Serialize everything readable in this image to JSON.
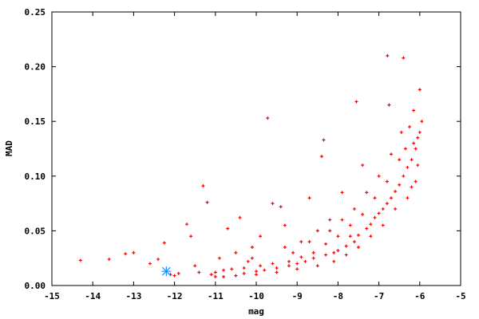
{
  "chart_data": {
    "type": "scatter",
    "xlabel": "mag",
    "ylabel": "MAD",
    "xlim": [
      -15,
      -5
    ],
    "ylim": [
      0,
      0.25
    ],
    "xticks": [
      -15,
      -14,
      -13,
      -12,
      -11,
      -10,
      -9,
      -8,
      -7,
      -6,
      -5
    ],
    "xtick_labels": [
      "-15",
      "-14",
      "-13",
      "-12",
      "-11",
      "-10",
      "-9",
      "-8",
      "-7",
      "-6",
      "-5"
    ],
    "yticks": [
      0,
      0.05,
      0.1,
      0.15,
      0.2,
      0.25
    ],
    "ytick_labels": [
      "0.00",
      "0.05",
      "0.10",
      "0.15",
      "0.20",
      "0.25"
    ],
    "grid": false,
    "colors": {
      "points": "#ff0000",
      "highlight": "#1e90ff"
    },
    "series": [
      {
        "marker": "plus",
        "color": "#ff0000",
        "points": [
          [
            -14.3,
            0.023
          ],
          [
            -13.6,
            0.024
          ],
          [
            -13.2,
            0.029
          ],
          [
            -13.0,
            0.03
          ],
          [
            -12.6,
            0.02
          ],
          [
            -12.4,
            0.024
          ],
          [
            -12.25,
            0.039
          ],
          [
            -12.1,
            0.01
          ],
          [
            -12.0,
            0.009
          ],
          [
            -11.9,
            0.011
          ],
          [
            -11.7,
            0.056
          ],
          [
            -11.6,
            0.045
          ],
          [
            -11.5,
            0.018
          ],
          [
            -11.3,
            0.091
          ],
          [
            -11.2,
            0.076
          ],
          [
            -11.4,
            0.012
          ],
          [
            -11.1,
            0.01
          ],
          [
            -11.0,
            0.012
          ],
          [
            -10.9,
            0.025
          ],
          [
            -10.8,
            0.008
          ],
          [
            -10.7,
            0.052
          ],
          [
            -10.6,
            0.015
          ],
          [
            -10.5,
            0.03
          ],
          [
            -10.4,
            0.062
          ],
          [
            -10.3,
            0.011
          ],
          [
            -10.2,
            0.022
          ],
          [
            -10.1,
            0.035
          ],
          [
            -10.0,
            0.013
          ],
          [
            -9.9,
            0.045
          ],
          [
            -9.8,
            0.014
          ],
          [
            -9.72,
            0.153
          ],
          [
            -9.6,
            0.075
          ],
          [
            -9.5,
            0.016
          ],
          [
            -9.4,
            0.072
          ],
          [
            -9.3,
            0.055
          ],
          [
            -9.2,
            0.018
          ],
          [
            -9.1,
            0.03
          ],
          [
            -9.0,
            0.02
          ],
          [
            -8.9,
            0.04
          ],
          [
            -8.8,
            0.022
          ],
          [
            -8.7,
            0.08
          ],
          [
            -8.6,
            0.025
          ],
          [
            -8.5,
            0.05
          ],
          [
            -8.4,
            0.118
          ],
          [
            -8.35,
            0.133
          ],
          [
            -8.3,
            0.028
          ],
          [
            -8.2,
            0.06
          ],
          [
            -8.1,
            0.03
          ],
          [
            -8.0,
            0.032
          ],
          [
            -7.9,
            0.085
          ],
          [
            -7.8,
            0.036
          ],
          [
            -7.7,
            0.045
          ],
          [
            -7.6,
            0.04
          ],
          [
            -7.55,
            0.168
          ],
          [
            -7.5,
            0.046
          ],
          [
            -7.4,
            0.11
          ],
          [
            -7.3,
            0.052
          ],
          [
            -7.2,
            0.056
          ],
          [
            -7.1,
            0.062
          ],
          [
            -7.0,
            0.066
          ],
          [
            -6.9,
            0.07
          ],
          [
            -6.8,
            0.075
          ],
          [
            -6.79,
            0.21
          ],
          [
            -6.75,
            0.165
          ],
          [
            -6.7,
            0.08
          ],
          [
            -6.6,
            0.086
          ],
          [
            -6.5,
            0.092
          ],
          [
            -6.4,
            0.208
          ],
          [
            -6.4,
            0.1
          ],
          [
            -6.3,
            0.108
          ],
          [
            -6.25,
            0.145
          ],
          [
            -6.2,
            0.115
          ],
          [
            -6.15,
            0.16
          ],
          [
            -6.1,
            0.125
          ],
          [
            -6.05,
            0.135
          ],
          [
            -6.0,
            0.179
          ],
          [
            -6.0,
            0.14
          ],
          [
            -5.95,
            0.15
          ],
          [
            -6.1,
            0.095
          ],
          [
            -6.3,
            0.08
          ],
          [
            -6.6,
            0.07
          ],
          [
            -6.9,
            0.055
          ],
          [
            -7.2,
            0.045
          ],
          [
            -7.5,
            0.035
          ],
          [
            -7.8,
            0.028
          ],
          [
            -8.1,
            0.022
          ],
          [
            -8.5,
            0.018
          ],
          [
            -9.0,
            0.015
          ],
          [
            -9.5,
            0.012
          ],
          [
            -10.0,
            0.01
          ],
          [
            -10.5,
            0.009
          ],
          [
            -11.0,
            0.008
          ],
          [
            -6.2,
            0.09
          ],
          [
            -6.5,
            0.115
          ],
          [
            -6.8,
            0.095
          ],
          [
            -7.1,
            0.08
          ],
          [
            -7.4,
            0.065
          ],
          [
            -7.7,
            0.055
          ],
          [
            -8.0,
            0.045
          ],
          [
            -8.3,
            0.038
          ],
          [
            -8.6,
            0.03
          ],
          [
            -8.9,
            0.026
          ],
          [
            -9.2,
            0.022
          ],
          [
            -9.6,
            0.02
          ],
          [
            -9.9,
            0.018
          ],
          [
            -10.3,
            0.016
          ],
          [
            -10.8,
            0.014
          ],
          [
            -6.05,
            0.11
          ],
          [
            -6.15,
            0.13
          ],
          [
            -6.35,
            0.125
          ],
          [
            -6.45,
            0.14
          ],
          [
            -6.7,
            0.12
          ],
          [
            -7.0,
            0.1
          ],
          [
            -7.3,
            0.085
          ],
          [
            -7.6,
            0.07
          ],
          [
            -7.9,
            0.06
          ],
          [
            -8.2,
            0.05
          ],
          [
            -8.7,
            0.04
          ],
          [
            -9.3,
            0.035
          ],
          [
            -10.1,
            0.025
          ]
        ]
      },
      {
        "marker": "star",
        "color": "#1e90ff",
        "points": [
          [
            -12.2,
            0.013
          ]
        ]
      }
    ]
  }
}
